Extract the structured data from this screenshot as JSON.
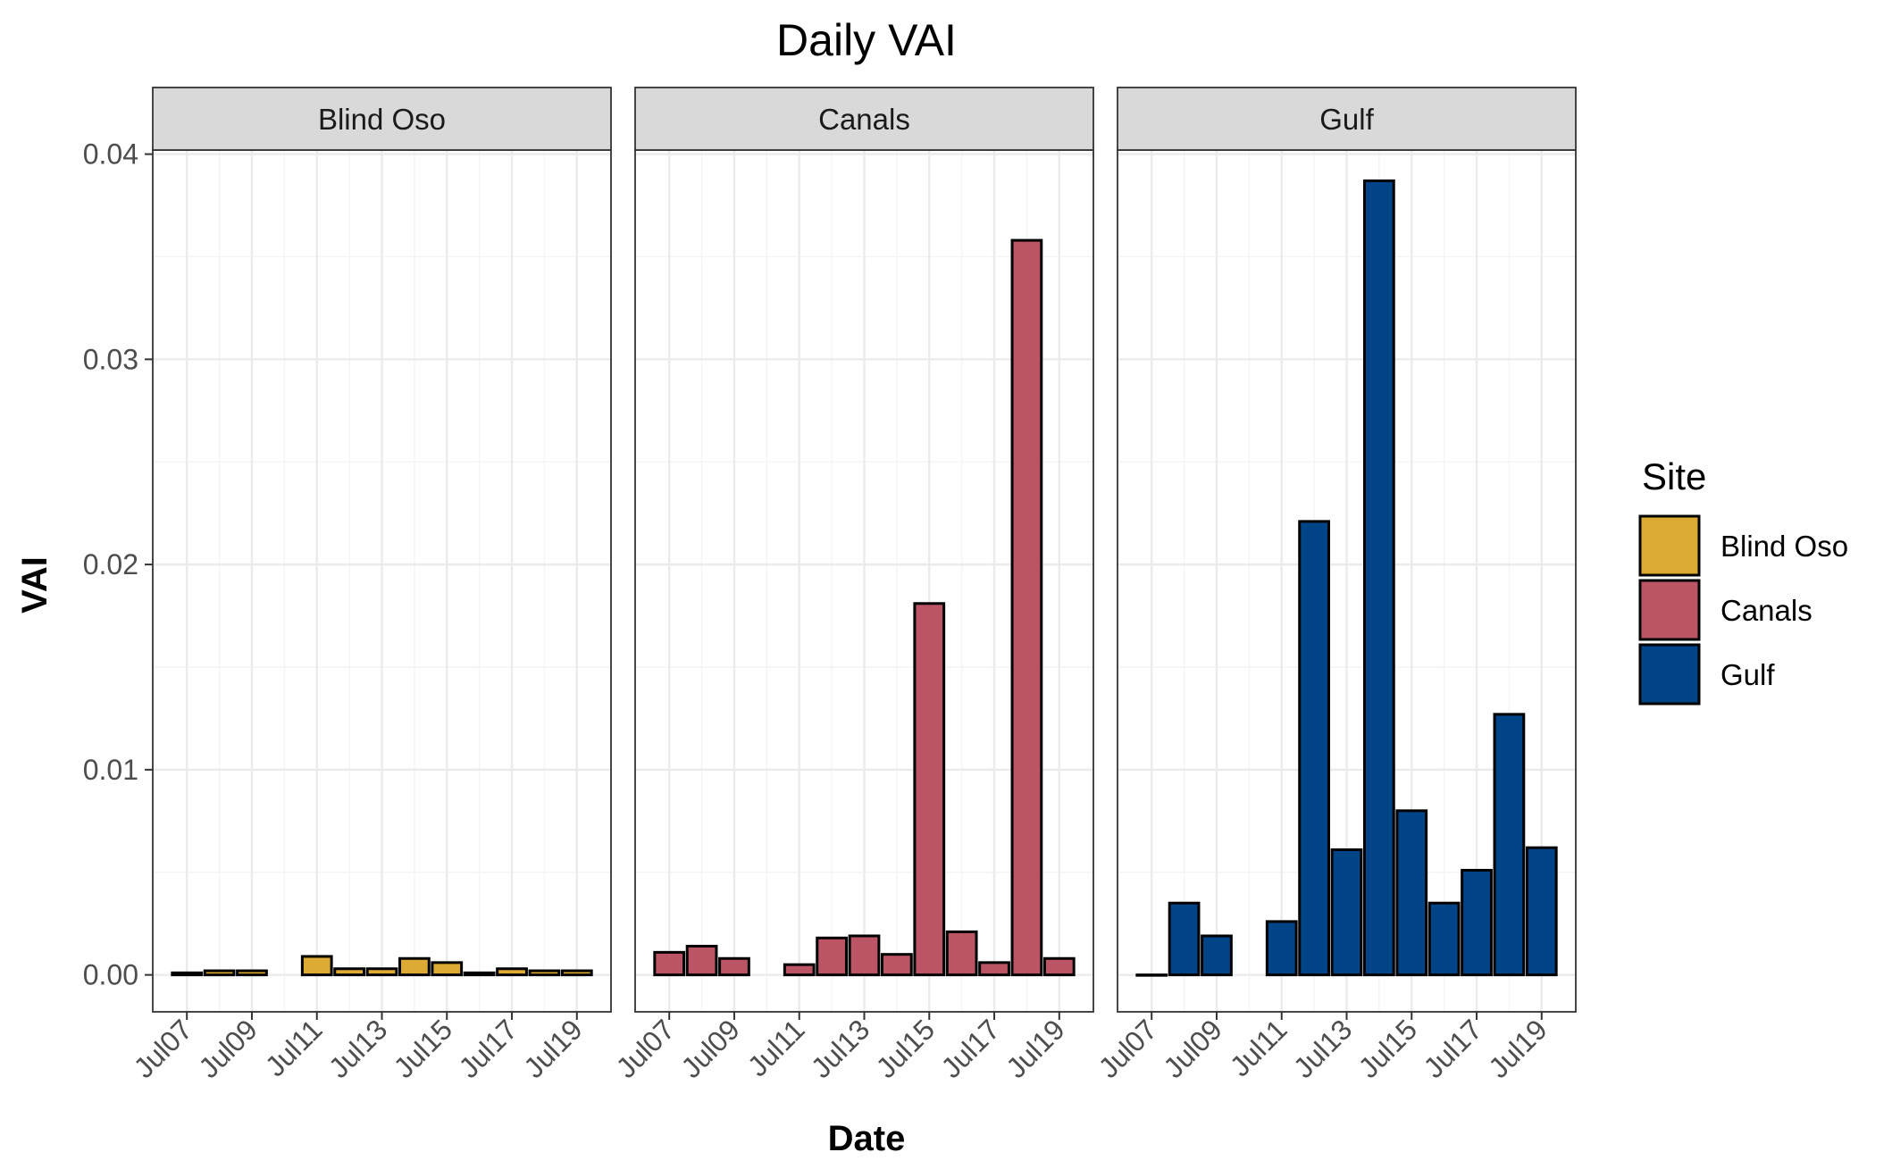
{
  "chart_data": {
    "type": "bar",
    "title": "Daily VAI",
    "xlabel": "Date",
    "ylabel": "VAI",
    "ylim": [
      -0.0018,
      0.0402
    ],
    "yticks": [
      0.0,
      0.01,
      0.02,
      0.03,
      0.04
    ],
    "ytick_labels": [
      "0.00",
      "0.01",
      "0.02",
      "0.03",
      "0.04"
    ],
    "dates": [
      "Jul07",
      "Jul08",
      "Jul09",
      "Jul10",
      "Jul11",
      "Jul12",
      "Jul13",
      "Jul14",
      "Jul15",
      "Jul16",
      "Jul17",
      "Jul18",
      "Jul19"
    ],
    "xtick_labels": [
      "Jul07",
      "Jul09",
      "Jul11",
      "Jul13",
      "Jul15",
      "Jul17",
      "Jul19"
    ],
    "grid": true,
    "legend": {
      "title": "Site",
      "position": "right",
      "entries": [
        "Blind Oso",
        "Canals",
        "Gulf"
      ]
    },
    "series": [
      {
        "name": "Blind Oso",
        "color": "#DDAA33",
        "values": [
          0.0001,
          0.0002,
          0.0002,
          null,
          0.0009,
          0.0003,
          0.0003,
          0.0008,
          0.0006,
          0.0001,
          0.0003,
          0.0002,
          0.0002
        ]
      },
      {
        "name": "Canals",
        "color": "#BB5566",
        "values": [
          0.0011,
          0.0014,
          0.0008,
          null,
          0.0005,
          0.0018,
          0.0019,
          0.001,
          0.0181,
          0.0021,
          0.0006,
          0.0358,
          0.0008
        ]
      },
      {
        "name": "Gulf",
        "color": "#004488",
        "values": [
          0.0,
          0.0035,
          0.0019,
          null,
          0.0026,
          0.0221,
          0.0061,
          0.0387,
          0.008,
          0.0035,
          0.0051,
          0.0127,
          0.0062
        ]
      }
    ]
  }
}
